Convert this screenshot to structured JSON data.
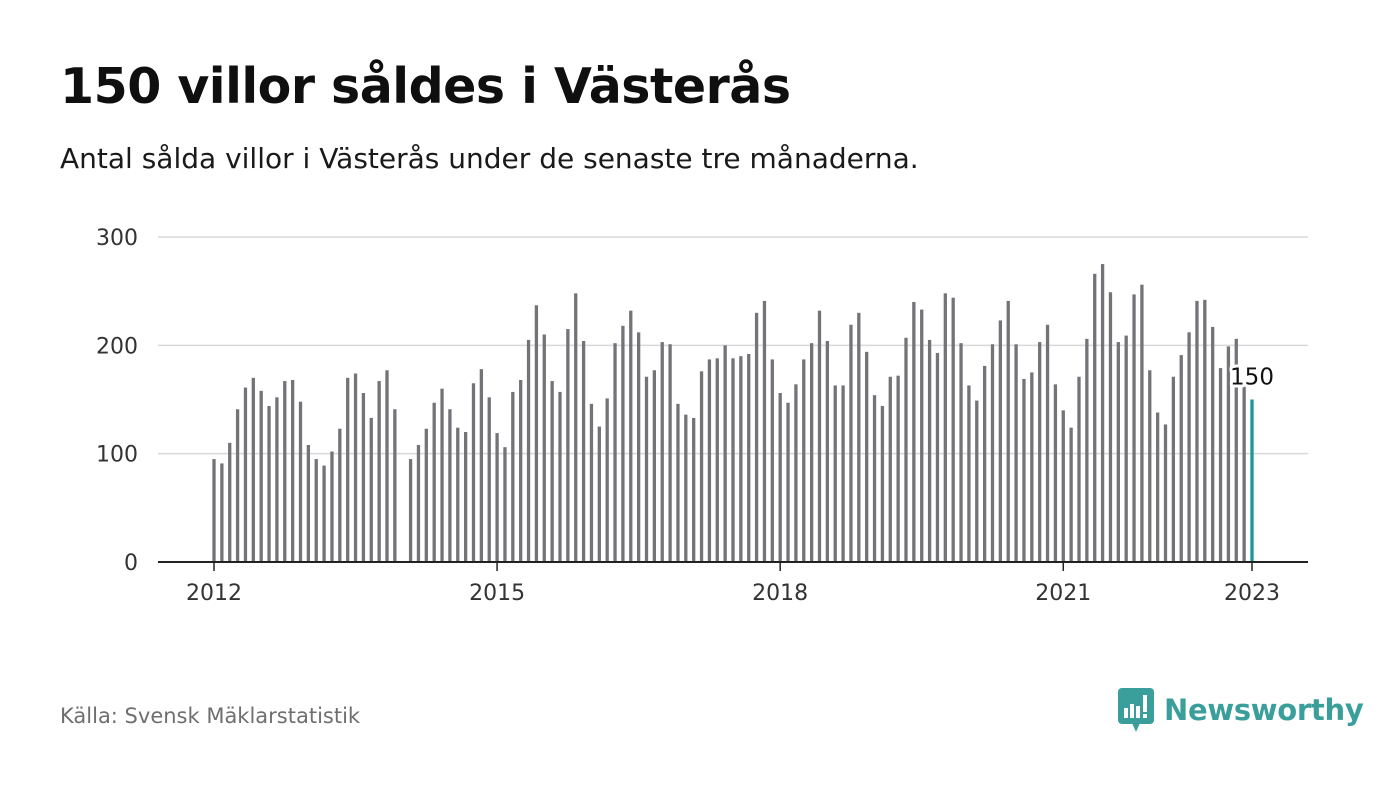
{
  "header": {
    "title": "150 villor såldes i Västerås",
    "subtitle": "Antal sålda villor i Västerås under de senaste tre månaderna."
  },
  "footer": {
    "source": "Källa: Svensk Mäklarstatistik",
    "brand": "Newsworthy",
    "logo_icon": "newsworthy-logo-icon"
  },
  "colors": {
    "bar": "#737378",
    "highlight": "#1a9a8f",
    "grid": "#d9d9d9",
    "axis": "#222222",
    "brand": "#3a9e9a"
  },
  "chart_data": {
    "type": "bar",
    "title": "150 villor såldes i Västerås",
    "subtitle": "Antal sålda villor i Västerås under de senaste tre månaderna.",
    "xlabel": "",
    "ylabel": "",
    "ylim": [
      0,
      300
    ],
    "yticks": [
      "0",
      "100",
      "200",
      "300"
    ],
    "xticks": [
      "2012",
      "2015",
      "2018",
      "2021",
      "2023"
    ],
    "grid": true,
    "start": "2012-01",
    "x": [
      "2012-01",
      "2012-02",
      "2012-03",
      "2012-04",
      "2012-05",
      "2012-06",
      "2012-07",
      "2012-08",
      "2012-09",
      "2012-10",
      "2012-11",
      "2012-12",
      "2013-01",
      "2013-02",
      "2013-03",
      "2013-04",
      "2013-05",
      "2013-06",
      "2013-07",
      "2013-08",
      "2013-09",
      "2013-10",
      "2013-11",
      "2013-12",
      "2014-01",
      "2014-02",
      "2014-03",
      "2014-04",
      "2014-05",
      "2014-06",
      "2014-07",
      "2014-08",
      "2014-09",
      "2014-10",
      "2014-11",
      "2014-12",
      "2015-01",
      "2015-02",
      "2015-03",
      "2015-04",
      "2015-05",
      "2015-06",
      "2015-07",
      "2015-08",
      "2015-09",
      "2015-10",
      "2015-11",
      "2015-12",
      "2016-01",
      "2016-02",
      "2016-03",
      "2016-04",
      "2016-05",
      "2016-06",
      "2016-07",
      "2016-08",
      "2016-09",
      "2016-10",
      "2016-11",
      "2016-12",
      "2017-01",
      "2017-02",
      "2017-03",
      "2017-04",
      "2017-05",
      "2017-06",
      "2017-07",
      "2017-08",
      "2017-09",
      "2017-10",
      "2017-11",
      "2017-12",
      "2018-01",
      "2018-02",
      "2018-03",
      "2018-04",
      "2018-05",
      "2018-06",
      "2018-07",
      "2018-08",
      "2018-09",
      "2018-10",
      "2018-11",
      "2018-12",
      "2019-01",
      "2019-02",
      "2019-03",
      "2019-04",
      "2019-05",
      "2019-06",
      "2019-07",
      "2019-08",
      "2019-09",
      "2019-10",
      "2019-11",
      "2019-12",
      "2020-01",
      "2020-02",
      "2020-03",
      "2020-04",
      "2020-05",
      "2020-06",
      "2020-07",
      "2020-08",
      "2020-09",
      "2020-10",
      "2020-11",
      "2020-12",
      "2021-01",
      "2021-02",
      "2021-03",
      "2021-04",
      "2021-05",
      "2021-06",
      "2021-07",
      "2021-08",
      "2021-09",
      "2021-10",
      "2021-11",
      "2021-12",
      "2022-01",
      "2022-02",
      "2022-03",
      "2022-04",
      "2022-05",
      "2022-06",
      "2022-07",
      "2022-08",
      "2022-09",
      "2022-10",
      "2022-11",
      "2022-12",
      "2023-01"
    ],
    "values": [
      95,
      91,
      110,
      141,
      161,
      170,
      158,
      144,
      152,
      167,
      168,
      148,
      108,
      95,
      89,
      102,
      123,
      170,
      174,
      156,
      133,
      167,
      177,
      141,
      null,
      95,
      108,
      123,
      147,
      160,
      141,
      124,
      120,
      165,
      178,
      152,
      119,
      106,
      157,
      168,
      205,
      237,
      210,
      167,
      157,
      215,
      248,
      204,
      146,
      125,
      151,
      202,
      218,
      232,
      212,
      171,
      177,
      203,
      201,
      146,
      136,
      133,
      176,
      187,
      188,
      200,
      188,
      190,
      192,
      230,
      241,
      187,
      156,
      147,
      164,
      187,
      202,
      232,
      204,
      163,
      163,
      219,
      230,
      194,
      154,
      144,
      171,
      172,
      207,
      240,
      233,
      205,
      193,
      248,
      244,
      202,
      163,
      149,
      181,
      201,
      223,
      241,
      201,
      169,
      175,
      203,
      219,
      164,
      140,
      124,
      171,
      206,
      266,
      275,
      249,
      203,
      209,
      247,
      256,
      177,
      138,
      127,
      171,
      191,
      212,
      241,
      242,
      217,
      179,
      199,
      206,
      163,
      150
    ],
    "highlight_index": 132,
    "value_label": "150"
  }
}
